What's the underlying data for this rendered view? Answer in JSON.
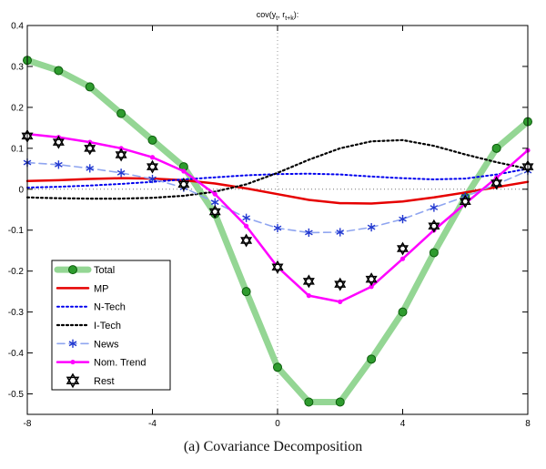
{
  "figure": {
    "caption": "(a) Covariance Decomposition"
  },
  "chart_data": {
    "type": "line",
    "title": "cov(y_t, r_{t+k}):",
    "title_parts": [
      {
        "text": "cov(y",
        "sub": false
      },
      {
        "text": "t",
        "sub": true
      },
      {
        "text": ", r",
        "sub": false
      },
      {
        "text": "t+k",
        "sub": true
      },
      {
        "text": "):",
        "sub": false
      }
    ],
    "xlim": [
      -8,
      8
    ],
    "ylim": [
      -0.55,
      0.4
    ],
    "xticks": [
      {
        "v": -8,
        "label": "-8"
      },
      {
        "v": -4,
        "label": "-4"
      },
      {
        "v": 0,
        "label": "0"
      },
      {
        "v": 4,
        "label": "4"
      },
      {
        "v": 8,
        "label": "8"
      }
    ],
    "yticks": [
      {
        "v": -0.5,
        "label": "-0.5"
      },
      {
        "v": -0.4,
        "label": "-0.4"
      },
      {
        "v": -0.3,
        "label": "-0.3"
      },
      {
        "v": -0.2,
        "label": "-0.2"
      },
      {
        "v": -0.1,
        "label": "-0.1"
      },
      {
        "v": 0,
        "label": "0"
      },
      {
        "v": 0.1,
        "label": "0.1"
      },
      {
        "v": 0.2,
        "label": "0.2"
      },
      {
        "v": 0.3,
        "label": "0.3"
      },
      {
        "v": 0.4,
        "label": "0.4"
      }
    ],
    "grid": {
      "zero_horizontal": true,
      "zero_vertical": true
    },
    "legend_position": "lower-left",
    "x": [
      -8,
      -7,
      -6,
      -5,
      -4,
      -3,
      -2,
      -1,
      0,
      1,
      2,
      3,
      4,
      5,
      6,
      7,
      8
    ],
    "series": [
      {
        "name": "Total",
        "color": "#94d694",
        "line_width": 7,
        "line_style": "solid",
        "marker": "circle",
        "marker_color": "#2e9b2e",
        "marker_edge": "#0c5c0c",
        "values": [
          0.315,
          0.29,
          0.25,
          0.185,
          0.12,
          0.055,
          -0.06,
          -0.25,
          -0.435,
          -0.52,
          -0.52,
          -0.415,
          -0.3,
          -0.155,
          -0.02,
          0.1,
          0.165
        ]
      },
      {
        "name": "MP",
        "color": "#e60000",
        "line_width": 2.5,
        "line_style": "solid",
        "marker": "none",
        "marker_color": "#e60000",
        "values": [
          0.02,
          0.022,
          0.025,
          0.027,
          0.026,
          0.022,
          0.014,
          0.002,
          -0.012,
          -0.026,
          -0.034,
          -0.035,
          -0.03,
          -0.02,
          -0.008,
          0.005,
          0.018
        ]
      },
      {
        "name": "N-Tech",
        "color": "#0000ee",
        "line_width": 2,
        "line_style": "dotted",
        "marker": "none",
        "marker_color": "#0000ee",
        "values": [
          0.004,
          0.006,
          0.009,
          0.013,
          0.018,
          0.024,
          0.029,
          0.034,
          0.037,
          0.038,
          0.036,
          0.031,
          0.027,
          0.024,
          0.026,
          0.036,
          0.05
        ]
      },
      {
        "name": "I-Tech",
        "color": "#000000",
        "line_width": 2.2,
        "line_style": "dotted",
        "marker": "none",
        "marker_color": "#000000",
        "values": [
          -0.02,
          -0.022,
          -0.023,
          -0.023,
          -0.021,
          -0.016,
          -0.006,
          0.012,
          0.04,
          0.072,
          0.1,
          0.117,
          0.12,
          0.106,
          0.085,
          0.066,
          0.05
        ]
      },
      {
        "name": "News",
        "color": "#8fa5f0",
        "line_width": 1.6,
        "line_style": "dashed",
        "marker": "asterisk",
        "marker_color": "#2238d0",
        "values": [
          0.065,
          0.06,
          0.051,
          0.04,
          0.025,
          0.004,
          -0.032,
          -0.07,
          -0.095,
          -0.106,
          -0.105,
          -0.093,
          -0.073,
          -0.045,
          -0.018,
          0.012,
          0.045
        ]
      },
      {
        "name": "Nom. Trend",
        "color": "#ff00ff",
        "line_width": 2.5,
        "line_style": "solid",
        "marker": "dot",
        "marker_color": "#ff00ff",
        "values": [
          0.135,
          0.127,
          0.115,
          0.1,
          0.078,
          0.044,
          -0.012,
          -0.09,
          -0.19,
          -0.26,
          -0.275,
          -0.238,
          -0.17,
          -0.1,
          -0.035,
          0.028,
          0.095
        ]
      },
      {
        "name": "Rest",
        "color": "#000000",
        "line_width": 0,
        "line_style": "none",
        "marker": "hexagram",
        "marker_color": "#000000",
        "values": [
          0.13,
          0.115,
          0.1,
          0.084,
          0.055,
          0.012,
          -0.055,
          -0.125,
          -0.19,
          -0.225,
          -0.232,
          -0.22,
          -0.145,
          -0.09,
          -0.03,
          0.015,
          0.055
        ]
      }
    ]
  }
}
